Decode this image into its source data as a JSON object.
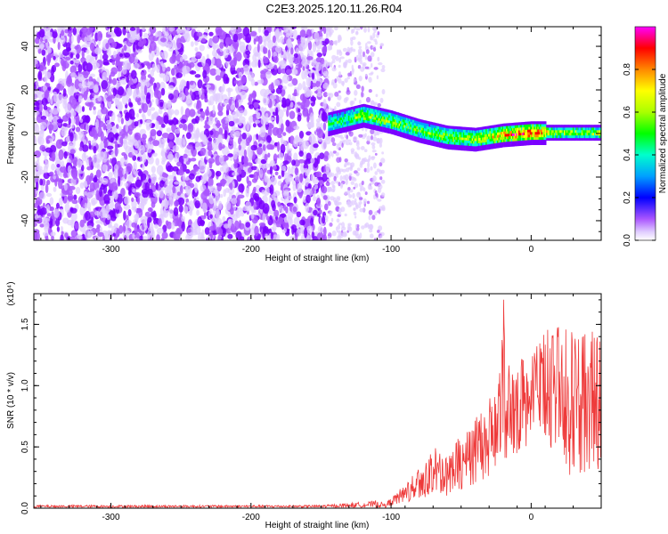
{
  "title": "C2E3.2025.120.11.26.R04",
  "colors": {
    "spectrogram_cmap": [
      "#ffffff",
      "#e0ccff",
      "#aa55ff",
      "#7a00ff",
      "#0000ff",
      "#00a0ff",
      "#00ffcc",
      "#00ff00",
      "#aaff00",
      "#ffff00",
      "#ff8800",
      "#ff0000",
      "#ff00ff"
    ],
    "snr_line": "#ee3a3a"
  },
  "chart_data": [
    {
      "type": "heatmap",
      "panel": "spectrogram",
      "xlabel": "Height of straight line (km)",
      "ylabel": "Frequency (Hz)",
      "xlim": [
        -355,
        50
      ],
      "ylim": [
        -49,
        49
      ],
      "xticks": [
        "-300",
        "-200",
        "-100",
        "0"
      ],
      "yticks": [
        "40",
        "20",
        "0",
        "-20",
        "-40"
      ],
      "colorbar": {
        "label": "Normalized spectral amplitude",
        "range": [
          0.0,
          1.0
        ],
        "ticks": [
          "0.0",
          "0.2",
          "0.4",
          "0.6",
          "0.8"
        ]
      },
      "features": {
        "noise_region_km": [
          -355,
          -145
        ],
        "signal_band": [
          {
            "x": -145,
            "freq_center": 5,
            "amp": 0.45
          },
          {
            "x": -120,
            "freq_center": 9,
            "amp": 0.55
          },
          {
            "x": -100,
            "freq_center": 6,
            "amp": 0.55
          },
          {
            "x": -80,
            "freq_center": 2,
            "amp": 0.5
          },
          {
            "x": -60,
            "freq_center": -1,
            "amp": 0.55
          },
          {
            "x": -40,
            "freq_center": -2,
            "amp": 0.6
          },
          {
            "x": -20,
            "freq_center": 0,
            "amp": 0.75
          },
          {
            "x": 0,
            "freq_center": 1,
            "amp": 0.85
          },
          {
            "x": 20,
            "freq_center": 1,
            "amp": 0.6
          },
          {
            "x": 50,
            "freq_center": 1,
            "amp": 0.6
          }
        ]
      }
    },
    {
      "type": "line",
      "panel": "snr",
      "xlabel": "Height of straight line (km)",
      "ylabel": "SNR (10 * v/v)",
      "y_multiplier": "(x10⁴)",
      "xlim": [
        -355,
        50
      ],
      "ylim": [
        0,
        1.75
      ],
      "xticks": [
        "-300",
        "-200",
        "-100",
        "0"
      ],
      "yticks": [
        "0.0",
        "0.5",
        "1.0",
        "1.5"
      ],
      "series": [
        {
          "x": [
            -355,
            -300,
            -250,
            -200,
            -150,
            -115,
            -110,
            -105,
            -100,
            -90,
            -80,
            -70,
            -60,
            -50,
            -40,
            -30,
            -25,
            -22,
            -20,
            -15,
            -10,
            -5,
            0,
            10,
            20,
            30,
            40,
            50
          ],
          "y_envelope_max": [
            0.02,
            0.02,
            0.02,
            0.02,
            0.02,
            0.05,
            0.06,
            0.04,
            0.08,
            0.2,
            0.35,
            0.5,
            0.45,
            0.6,
            0.75,
            0.9,
            1.0,
            1.25,
            1.75,
            1.1,
            1.2,
            1.3,
            1.35,
            1.45,
            1.5,
            1.5,
            1.5,
            1.48
          ],
          "y_envelope_min": [
            0.0,
            0.0,
            0.0,
            0.0,
            0.0,
            0.0,
            0.0,
            0.0,
            0.02,
            0.05,
            0.05,
            0.1,
            0.1,
            0.15,
            0.2,
            0.25,
            0.3,
            0.2,
            0.2,
            0.4,
            0.45,
            0.5,
            0.5,
            0.6,
            0.35,
            0.2,
            0.25,
            0.3
          ]
        }
      ]
    }
  ]
}
